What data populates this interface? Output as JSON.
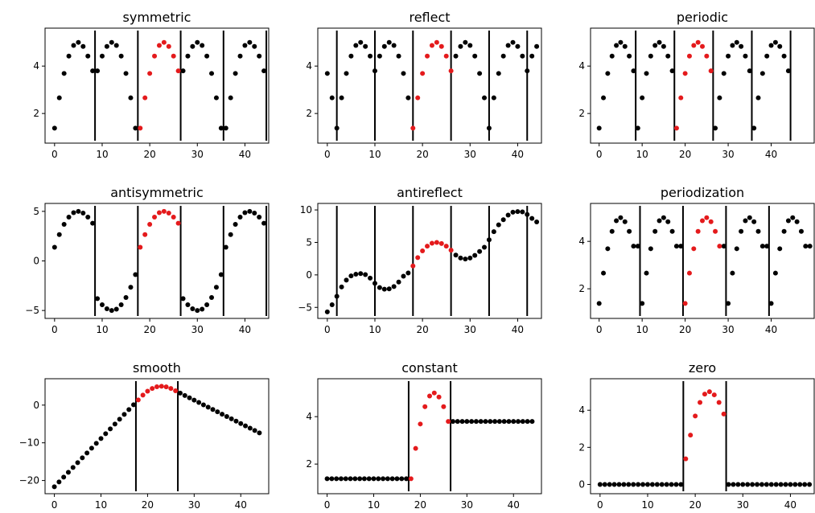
{
  "colors": {
    "original": "#e41a1c",
    "extended": "#000000",
    "boundary": "#000000"
  },
  "chart_data": [
    {
      "type": "scatter",
      "title": "symmetric",
      "xlim": [
        -2,
        45
      ],
      "ylim": [
        0.75,
        5.6
      ],
      "xticks": [
        0,
        10,
        20,
        30,
        40
      ],
      "yticks": [
        2,
        4
      ],
      "boundaries": [
        8.5,
        17.5,
        26.5,
        35.5,
        44.5
      ],
      "orig_x": [
        18,
        19,
        20,
        21,
        22,
        23,
        24,
        25,
        26
      ],
      "orig_y": [
        1.38,
        2.66,
        3.69,
        4.42,
        4.87,
        5.0,
        4.83,
        4.42,
        3.8
      ],
      "ext_x": [
        0,
        1,
        2,
        3,
        4,
        5,
        6,
        7,
        8,
        9,
        10,
        11,
        12,
        13,
        14,
        15,
        16,
        17,
        27,
        28,
        29,
        30,
        31,
        32,
        33,
        34,
        35,
        36,
        37,
        38,
        39,
        40,
        41,
        42,
        43,
        44
      ],
      "ext_y": [
        1.38,
        2.66,
        3.69,
        4.42,
        4.87,
        5.0,
        4.83,
        4.42,
        3.8,
        3.8,
        4.42,
        4.83,
        5.0,
        4.87,
        4.42,
        3.69,
        2.66,
        1.38,
        3.8,
        4.42,
        4.83,
        5.0,
        4.87,
        4.42,
        3.69,
        2.66,
        1.38,
        1.38,
        2.66,
        3.69,
        4.42,
        4.87,
        5.0,
        4.83,
        4.42,
        3.8
      ]
    },
    {
      "type": "scatter",
      "title": "reflect",
      "xlim": [
        -2,
        45
      ],
      "ylim": [
        0.75,
        5.6
      ],
      "xticks": [
        0,
        10,
        20,
        30,
        40
      ],
      "yticks": [
        2,
        4
      ],
      "boundaries": [
        2,
        10,
        18,
        26,
        34,
        42
      ],
      "orig_x": [
        18,
        19,
        20,
        21,
        22,
        23,
        24,
        25,
        26
      ],
      "orig_y": [
        1.38,
        2.66,
        3.69,
        4.42,
        4.87,
        5.0,
        4.83,
        4.42,
        3.8
      ],
      "ext_x": [
        0,
        1,
        2,
        3,
        4,
        5,
        6,
        7,
        8,
        9,
        10,
        11,
        12,
        13,
        14,
        15,
        16,
        17,
        27,
        28,
        29,
        30,
        31,
        32,
        33,
        34,
        35,
        36,
        37,
        38,
        39,
        40,
        41,
        42,
        43,
        44
      ],
      "ext_y": [
        3.69,
        2.66,
        1.38,
        2.66,
        3.69,
        4.42,
        4.87,
        5.0,
        4.83,
        4.42,
        3.8,
        4.42,
        4.83,
        5.0,
        4.87,
        4.42,
        3.69,
        2.66,
        4.42,
        4.83,
        5.0,
        4.87,
        4.42,
        3.69,
        2.66,
        1.38,
        2.66,
        3.69,
        4.42,
        4.87,
        5.0,
        4.83,
        4.42,
        3.8,
        4.42,
        4.83
      ]
    },
    {
      "type": "scatter",
      "title": "periodic",
      "xlim": [
        -2,
        50
      ],
      "ylim": [
        0.75,
        5.6
      ],
      "xticks": [
        0,
        10,
        20,
        30,
        40
      ],
      "yticks": [
        2,
        4
      ],
      "boundaries": [
        8.5,
        17.5,
        26.5,
        35.5,
        44.5
      ],
      "orig_x": [
        18,
        19,
        20,
        21,
        22,
        23,
        24,
        25,
        26
      ],
      "orig_y": [
        1.38,
        2.66,
        3.69,
        4.42,
        4.87,
        5.0,
        4.83,
        4.42,
        3.8
      ],
      "ext_x": [
        0,
        1,
        2,
        3,
        4,
        5,
        6,
        7,
        8,
        9,
        10,
        11,
        12,
        13,
        14,
        15,
        16,
        17,
        27,
        28,
        29,
        30,
        31,
        32,
        33,
        34,
        35,
        36,
        37,
        38,
        39,
        40,
        41,
        42,
        43,
        44
      ],
      "ext_y": [
        1.38,
        2.66,
        3.69,
        4.42,
        4.87,
        5.0,
        4.83,
        4.42,
        3.8,
        1.38,
        2.66,
        3.69,
        4.42,
        4.87,
        5.0,
        4.83,
        4.42,
        3.8,
        1.38,
        2.66,
        3.69,
        4.42,
        4.87,
        5.0,
        4.83,
        4.42,
        3.8,
        1.38,
        2.66,
        3.69,
        4.42,
        4.87,
        5.0,
        4.83,
        4.42,
        3.8
      ]
    },
    {
      "type": "scatter",
      "title": "antisymmetric",
      "xlim": [
        -2,
        45
      ],
      "ylim": [
        -5.8,
        5.8
      ],
      "xticks": [
        0,
        10,
        20,
        30,
        40
      ],
      "yticks": [
        -5,
        0,
        5
      ],
      "boundaries": [
        8.5,
        17.5,
        26.5,
        35.5,
        44.5
      ],
      "orig_x": [
        18,
        19,
        20,
        21,
        22,
        23,
        24,
        25,
        26
      ],
      "orig_y": [
        1.38,
        2.66,
        3.69,
        4.42,
        4.87,
        5.0,
        4.83,
        4.42,
        3.8
      ],
      "ext_x": [
        0,
        1,
        2,
        3,
        4,
        5,
        6,
        7,
        8,
        9,
        10,
        11,
        12,
        13,
        14,
        15,
        16,
        17,
        27,
        28,
        29,
        30,
        31,
        32,
        33,
        34,
        35,
        36,
        37,
        38,
        39,
        40,
        41,
        42,
        43,
        44
      ],
      "ext_y": [
        1.38,
        2.66,
        3.69,
        4.42,
        4.87,
        5.0,
        4.83,
        4.42,
        3.8,
        -3.8,
        -4.42,
        -4.83,
        -5.0,
        -4.87,
        -4.42,
        -3.69,
        -2.66,
        -1.38,
        -3.8,
        -4.42,
        -4.83,
        -5.0,
        -4.87,
        -4.42,
        -3.69,
        -2.66,
        -1.38,
        1.38,
        2.66,
        3.69,
        4.42,
        4.87,
        5.0,
        4.83,
        4.42,
        3.8
      ]
    },
    {
      "type": "scatter",
      "title": "antireflect",
      "xlim": [
        -2,
        45
      ],
      "ylim": [
        -6.7,
        11
      ],
      "xticks": [
        0,
        10,
        20,
        30,
        40
      ],
      "yticks": [
        -5,
        0,
        5,
        10
      ],
      "boundaries": [
        2,
        10,
        18,
        26,
        34,
        42
      ],
      "orig_x": [
        18,
        19,
        20,
        21,
        22,
        23,
        24,
        25,
        26
      ],
      "orig_y": [
        1.38,
        2.66,
        3.69,
        4.42,
        4.87,
        5.0,
        4.83,
        4.42,
        3.8
      ],
      "ext_x": [
        0,
        1,
        2,
        3,
        4,
        5,
        6,
        7,
        8,
        9,
        10,
        11,
        12,
        13,
        14,
        15,
        16,
        17,
        27,
        28,
        29,
        30,
        31,
        32,
        33,
        34,
        35,
        36,
        37,
        38,
        39,
        40,
        41,
        42,
        43,
        44
      ],
      "ext_y": [
        -5.7,
        -4.6,
        -3.3,
        -1.85,
        -0.8,
        -0.15,
        0.1,
        0.2,
        0.05,
        -0.5,
        -1.3,
        -1.95,
        -2.2,
        -2.15,
        -1.8,
        -1.1,
        -0.2,
        0.3,
        3.05,
        2.6,
        2.45,
        2.6,
        3.0,
        3.6,
        4.25,
        5.4,
        6.65,
        7.7,
        8.5,
        9.2,
        9.65,
        9.75,
        9.7,
        9.3,
        8.7,
        8.15
      ]
    },
    {
      "type": "scatter",
      "title": "periodization",
      "xlim": [
        -2,
        50
      ],
      "ylim": [
        0.75,
        5.6
      ],
      "xticks": [
        0,
        10,
        20,
        30,
        40
      ],
      "yticks": [
        2,
        4
      ],
      "boundaries": [
        9.5,
        19.5,
        29.5,
        39.5
      ],
      "orig_x": [
        20,
        21,
        22,
        23,
        24,
        25,
        26,
        27,
        28
      ],
      "orig_y": [
        1.38,
        2.66,
        3.69,
        4.42,
        4.87,
        5.0,
        4.83,
        4.42,
        3.8
      ],
      "ext_x": [
        0,
        1,
        2,
        3,
        4,
        5,
        6,
        7,
        8,
        9,
        10,
        11,
        12,
        13,
        14,
        15,
        16,
        17,
        18,
        19,
        29,
        30,
        31,
        32,
        33,
        34,
        35,
        36,
        37,
        38,
        39,
        40,
        41,
        42,
        43,
        44,
        45,
        46,
        47,
        48,
        49
      ],
      "ext_y": [
        1.38,
        2.66,
        3.69,
        4.42,
        4.87,
        5.0,
        4.83,
        4.42,
        3.8,
        3.8,
        1.38,
        2.66,
        3.69,
        4.42,
        4.87,
        5.0,
        4.83,
        4.42,
        3.8,
        3.8,
        3.8,
        1.38,
        2.66,
        3.69,
        4.42,
        4.87,
        5.0,
        4.83,
        4.42,
        3.8,
        3.8,
        1.38,
        2.66,
        3.69,
        4.42,
        4.87,
        5.0,
        4.83,
        4.42,
        3.8,
        3.8
      ]
    },
    {
      "type": "scatter",
      "title": "smooth",
      "xlim": [
        -2,
        46
      ],
      "ylim": [
        -23.5,
        7
      ],
      "xticks": [
        0,
        10,
        20,
        30,
        40
      ],
      "yticks": [
        -20,
        -10,
        0
      ],
      "boundaries": [
        17.5,
        26.5
      ],
      "orig_x": [
        18,
        19,
        20,
        21,
        22,
        23,
        24,
        25,
        26
      ],
      "orig_y": [
        1.38,
        2.66,
        3.69,
        4.42,
        4.87,
        5.0,
        4.83,
        4.42,
        3.8
      ],
      "ext_x": [
        0,
        1,
        2,
        3,
        4,
        5,
        6,
        7,
        8,
        9,
        10,
        11,
        12,
        13,
        14,
        15,
        16,
        17,
        27,
        28,
        29,
        30,
        31,
        32,
        33,
        34,
        35,
        36,
        37,
        38,
        39,
        40,
        41,
        42,
        43,
        44
      ],
      "ext_y": [
        -21.66,
        -20.38,
        -19.1,
        -17.82,
        -16.54,
        -15.26,
        -13.98,
        -12.7,
        -11.42,
        -10.14,
        -8.86,
        -7.58,
        -6.3,
        -5.02,
        -3.74,
        -2.46,
        -1.18,
        0.1,
        3.18,
        2.56,
        1.94,
        1.32,
        0.7,
        0.08,
        -0.54,
        -1.16,
        -1.78,
        -2.4,
        -3.02,
        -3.64,
        -4.26,
        -4.88,
        -5.5,
        -6.12,
        -6.74,
        -7.36
      ]
    },
    {
      "type": "scatter",
      "title": "constant",
      "xlim": [
        -2,
        46
      ],
      "ylim": [
        0.75,
        5.6
      ],
      "xticks": [
        0,
        10,
        20,
        30,
        40
      ],
      "yticks": [
        2,
        4
      ],
      "boundaries": [
        17.5,
        26.5
      ],
      "orig_x": [
        18,
        19,
        20,
        21,
        22,
        23,
        24,
        25,
        26
      ],
      "orig_y": [
        1.38,
        2.66,
        3.69,
        4.42,
        4.87,
        5.0,
        4.83,
        4.42,
        3.8
      ],
      "ext_x": [
        0,
        1,
        2,
        3,
        4,
        5,
        6,
        7,
        8,
        9,
        10,
        11,
        12,
        13,
        14,
        15,
        16,
        17,
        27,
        28,
        29,
        30,
        31,
        32,
        33,
        34,
        35,
        36,
        37,
        38,
        39,
        40,
        41,
        42,
        43,
        44
      ],
      "ext_y": [
        1.38,
        1.38,
        1.38,
        1.38,
        1.38,
        1.38,
        1.38,
        1.38,
        1.38,
        1.38,
        1.38,
        1.38,
        1.38,
        1.38,
        1.38,
        1.38,
        1.38,
        1.38,
        3.8,
        3.8,
        3.8,
        3.8,
        3.8,
        3.8,
        3.8,
        3.8,
        3.8,
        3.8,
        3.8,
        3.8,
        3.8,
        3.8,
        3.8,
        3.8,
        3.8,
        3.8
      ]
    },
    {
      "type": "scatter",
      "title": "zero",
      "xlim": [
        -2,
        45
      ],
      "ylim": [
        -0.5,
        5.7
      ],
      "xticks": [
        0,
        10,
        20,
        30,
        40
      ],
      "yticks": [
        0,
        2,
        4
      ],
      "boundaries": [
        17.5,
        26.5
      ],
      "orig_x": [
        18,
        19,
        20,
        21,
        22,
        23,
        24,
        25,
        26
      ],
      "orig_y": [
        1.38,
        2.66,
        3.69,
        4.42,
        4.87,
        5.0,
        4.83,
        4.42,
        3.8
      ],
      "ext_x": [
        0,
        1,
        2,
        3,
        4,
        5,
        6,
        7,
        8,
        9,
        10,
        11,
        12,
        13,
        14,
        15,
        16,
        17,
        27,
        28,
        29,
        30,
        31,
        32,
        33,
        34,
        35,
        36,
        37,
        38,
        39,
        40,
        41,
        42,
        43,
        44
      ],
      "ext_y": [
        0,
        0,
        0,
        0,
        0,
        0,
        0,
        0,
        0,
        0,
        0,
        0,
        0,
        0,
        0,
        0,
        0,
        0,
        0,
        0,
        0,
        0,
        0,
        0,
        0,
        0,
        0,
        0,
        0,
        0,
        0,
        0,
        0,
        0,
        0,
        0
      ]
    }
  ]
}
